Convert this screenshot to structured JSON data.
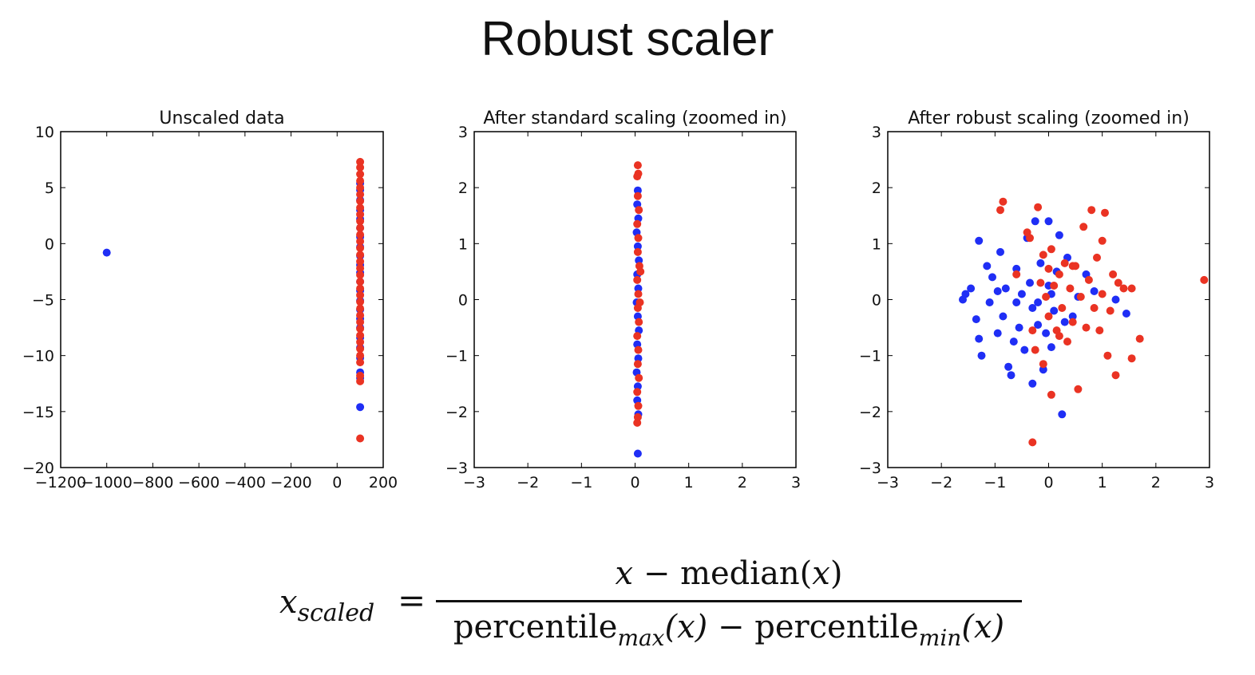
{
  "slide": {
    "title": "Robust scaler"
  },
  "colors": {
    "blue": "#1f2ef5",
    "red": "#ea3323",
    "axis": "#000000"
  },
  "chart_data": [
    {
      "type": "scatter",
      "title": "Unscaled data",
      "xlim": [
        -1200,
        200
      ],
      "ylim": [
        -20,
        10
      ],
      "xticks": [
        -1200,
        -1000,
        -800,
        -600,
        -400,
        -200,
        0,
        200
      ],
      "yticks": [
        -20,
        -15,
        -10,
        -5,
        0,
        5,
        10
      ],
      "series": [
        {
          "color": "blue",
          "points": [
            [
              -1000,
              -0.8
            ],
            [
              100,
              5.4
            ],
            [
              100,
              4.8
            ],
            [
              100,
              3.9
            ],
            [
              100,
              3.0
            ],
            [
              100,
              2.2
            ],
            [
              100,
              1.4
            ],
            [
              100,
              0.6
            ],
            [
              100,
              -0.3
            ],
            [
              100,
              -1.1
            ],
            [
              100,
              -1.9
            ],
            [
              100,
              -2.6
            ],
            [
              100,
              -3.4
            ],
            [
              100,
              -4.2
            ],
            [
              100,
              -5.1
            ],
            [
              100,
              -5.9
            ],
            [
              100,
              -6.7
            ],
            [
              100,
              -7.5
            ],
            [
              100,
              -8.4
            ],
            [
              100,
              -9.3
            ],
            [
              100,
              -10.2
            ],
            [
              100,
              -11.5
            ],
            [
              100,
              -12.0
            ],
            [
              100,
              -14.6
            ]
          ]
        },
        {
          "color": "red",
          "points": [
            [
              100,
              7.3
            ],
            [
              100,
              6.8
            ],
            [
              100,
              6.2
            ],
            [
              100,
              5.6
            ],
            [
              100,
              5.0
            ],
            [
              100,
              4.4
            ],
            [
              100,
              3.8
            ],
            [
              100,
              3.2
            ],
            [
              100,
              2.6
            ],
            [
              100,
              2.0
            ],
            [
              100,
              1.4
            ],
            [
              100,
              0.8
            ],
            [
              100,
              0.2
            ],
            [
              100,
              -0.4
            ],
            [
              100,
              -1.0
            ],
            [
              100,
              -1.6
            ],
            [
              100,
              -2.2
            ],
            [
              100,
              -2.8
            ],
            [
              100,
              -3.4
            ],
            [
              100,
              -4.0
            ],
            [
              100,
              -4.6
            ],
            [
              100,
              -5.2
            ],
            [
              100,
              -5.8
            ],
            [
              100,
              -6.4
            ],
            [
              100,
              -7.0
            ],
            [
              100,
              -7.6
            ],
            [
              100,
              -8.2
            ],
            [
              100,
              -8.8
            ],
            [
              100,
              -9.4
            ],
            [
              100,
              -10.0
            ],
            [
              100,
              -10.6
            ],
            [
              100,
              -11.8
            ],
            [
              100,
              -12.3
            ],
            [
              100,
              -17.4
            ]
          ]
        }
      ]
    },
    {
      "type": "scatter",
      "title": "After standard scaling (zoomed in)",
      "xlim": [
        -3,
        3
      ],
      "ylim": [
        -3,
        3
      ],
      "xticks": [
        -3,
        -2,
        -1,
        0,
        1,
        2,
        3
      ],
      "yticks": [
        -3,
        -2,
        -1,
        0,
        1,
        2,
        3
      ],
      "series": [
        {
          "color": "blue",
          "points": [
            [
              0.05,
              1.95
            ],
            [
              0.04,
              1.7
            ],
            [
              0.06,
              1.45
            ],
            [
              0.03,
              1.2
            ],
            [
              0.05,
              0.95
            ],
            [
              0.07,
              0.7
            ],
            [
              0.04,
              0.45
            ],
            [
              0.06,
              0.2
            ],
            [
              0.03,
              -0.05
            ],
            [
              0.05,
              -0.3
            ],
            [
              0.07,
              -0.55
            ],
            [
              0.04,
              -0.8
            ],
            [
              0.06,
              -1.05
            ],
            [
              0.03,
              -1.3
            ],
            [
              0.05,
              -1.55
            ],
            [
              0.04,
              -1.8
            ],
            [
              0.06,
              -2.05
            ],
            [
              0.05,
              -2.75
            ]
          ]
        },
        {
          "color": "red",
          "points": [
            [
              0.05,
              2.4
            ],
            [
              0.06,
              2.25
            ],
            [
              0.04,
              2.2
            ],
            [
              0.05,
              1.85
            ],
            [
              0.07,
              1.6
            ],
            [
              0.04,
              1.35
            ],
            [
              0.06,
              1.1
            ],
            [
              0.05,
              0.85
            ],
            [
              0.08,
              0.6
            ],
            [
              0.1,
              0.5
            ],
            [
              0.04,
              0.35
            ],
            [
              0.06,
              0.1
            ],
            [
              0.09,
              -0.05
            ],
            [
              0.05,
              -0.15
            ],
            [
              0.07,
              -0.4
            ],
            [
              0.04,
              -0.65
            ],
            [
              0.06,
              -0.9
            ],
            [
              0.05,
              -1.15
            ],
            [
              0.07,
              -1.4
            ],
            [
              0.04,
              -1.65
            ],
            [
              0.06,
              -1.9
            ],
            [
              0.05,
              -2.1
            ],
            [
              0.04,
              -2.2
            ]
          ]
        }
      ]
    },
    {
      "type": "scatter",
      "title": "After robust scaling (zoomed in)",
      "xlim": [
        -3,
        3
      ],
      "ylim": [
        -3,
        3
      ],
      "xticks": [
        -3,
        -2,
        -1,
        0,
        1,
        2,
        3
      ],
      "yticks": [
        -3,
        -2,
        -1,
        0,
        1,
        2,
        3
      ],
      "series": [
        {
          "color": "blue",
          "points": [
            [
              -1.6,
              0.0
            ],
            [
              -1.55,
              0.1
            ],
            [
              -1.45,
              0.2
            ],
            [
              -1.35,
              -0.35
            ],
            [
              -1.3,
              -0.7
            ],
            [
              -1.25,
              -1.0
            ],
            [
              -1.3,
              1.05
            ],
            [
              -1.15,
              0.6
            ],
            [
              -1.1,
              -0.05
            ],
            [
              -1.05,
              0.4
            ],
            [
              -0.95,
              -0.6
            ],
            [
              -0.9,
              0.85
            ],
            [
              -0.85,
              -0.3
            ],
            [
              -0.8,
              0.2
            ],
            [
              -0.75,
              -1.2
            ],
            [
              -0.7,
              -1.35
            ],
            [
              -0.65,
              -0.75
            ],
            [
              -0.6,
              0.55
            ],
            [
              -0.55,
              -0.5
            ],
            [
              -0.5,
              0.1
            ],
            [
              -0.45,
              -0.9
            ],
            [
              -0.4,
              1.1
            ],
            [
              -0.35,
              0.3
            ],
            [
              -0.3,
              -0.15
            ],
            [
              -0.3,
              -1.5
            ],
            [
              -0.25,
              1.4
            ],
            [
              -0.2,
              -0.45
            ],
            [
              -0.15,
              0.65
            ],
            [
              -0.1,
              -1.25
            ],
            [
              -0.05,
              -0.6
            ],
            [
              0.0,
              0.25
            ],
            [
              0.05,
              -0.85
            ],
            [
              0.0,
              1.4
            ],
            [
              0.1,
              -0.2
            ],
            [
              0.15,
              0.5
            ],
            [
              0.2,
              1.15
            ],
            [
              0.25,
              -2.05
            ],
            [
              0.3,
              -0.4
            ],
            [
              0.35,
              0.75
            ],
            [
              0.45,
              -0.3
            ],
            [
              0.55,
              0.05
            ],
            [
              0.7,
              0.45
            ],
            [
              0.85,
              0.15
            ],
            [
              1.25,
              0.0
            ],
            [
              1.45,
              -0.25
            ],
            [
              -0.2,
              -0.05
            ],
            [
              0.05,
              0.1
            ],
            [
              -0.6,
              -0.05
            ],
            [
              -0.95,
              0.15
            ]
          ]
        },
        {
          "color": "red",
          "points": [
            [
              -0.85,
              1.75
            ],
            [
              -0.9,
              1.6
            ],
            [
              -0.6,
              0.45
            ],
            [
              -0.4,
              1.2
            ],
            [
              -0.35,
              1.1
            ],
            [
              -0.3,
              -0.55
            ],
            [
              -0.25,
              -0.9
            ],
            [
              -0.2,
              1.65
            ],
            [
              -0.15,
              0.3
            ],
            [
              -0.1,
              -1.15
            ],
            [
              -0.1,
              0.8
            ],
            [
              -0.05,
              0.05
            ],
            [
              0.0,
              0.55
            ],
            [
              0.0,
              -0.3
            ],
            [
              0.05,
              0.9
            ],
            [
              0.05,
              -1.7
            ],
            [
              0.1,
              0.25
            ],
            [
              0.15,
              -0.55
            ],
            [
              0.2,
              0.45
            ],
            [
              0.25,
              -0.15
            ],
            [
              0.3,
              0.65
            ],
            [
              0.35,
              -0.75
            ],
            [
              0.4,
              0.2
            ],
            [
              0.45,
              -0.4
            ],
            [
              0.5,
              0.6
            ],
            [
              0.55,
              -1.6
            ],
            [
              0.6,
              0.05
            ],
            [
              0.65,
              1.3
            ],
            [
              0.7,
              -0.5
            ],
            [
              0.75,
              0.35
            ],
            [
              0.8,
              1.6
            ],
            [
              0.85,
              -0.15
            ],
            [
              0.9,
              0.75
            ],
            [
              0.95,
              -0.55
            ],
            [
              1.0,
              0.1
            ],
            [
              1.0,
              1.05
            ],
            [
              1.05,
              1.55
            ],
            [
              1.1,
              -1.0
            ],
            [
              1.15,
              -0.2
            ],
            [
              1.2,
              0.45
            ],
            [
              1.25,
              -1.35
            ],
            [
              1.3,
              0.3
            ],
            [
              1.4,
              0.2
            ],
            [
              1.55,
              -1.05
            ],
            [
              1.55,
              0.2
            ],
            [
              1.7,
              -0.7
            ],
            [
              2.9,
              0.35
            ],
            [
              -0.3,
              -2.55
            ],
            [
              0.45,
              0.6
            ],
            [
              0.2,
              -0.65
            ]
          ]
        }
      ]
    }
  ],
  "formula": {
    "lhs_var": "x",
    "lhs_sub": "scaled",
    "equals": "=",
    "num_var": "x",
    "num_minus": "−",
    "num_fn": "median(",
    "num_arg": "x",
    "num_close": ")",
    "den_fn1": "percentile",
    "den_sub1": "max",
    "den_arg1": "(x)",
    "den_minus": "−",
    "den_fn2": "percentile",
    "den_sub2": "min",
    "den_arg2": "(x)"
  }
}
